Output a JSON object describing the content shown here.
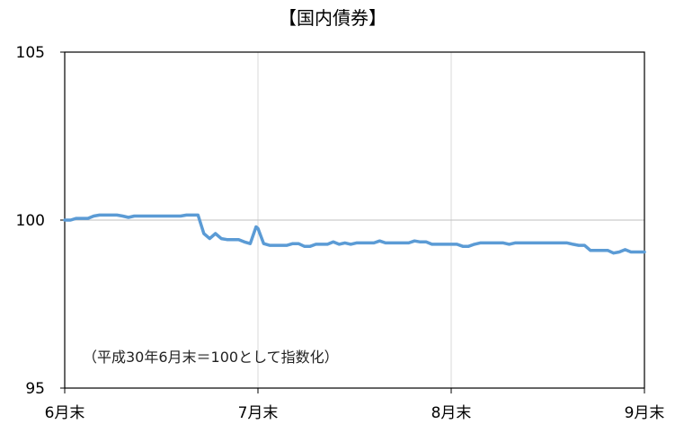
{
  "chart_data": {
    "type": "line",
    "title": "【国内債券】",
    "annotation": "（平成30年6月末＝100として指数化）",
    "xlabel": "",
    "ylabel": "",
    "ylim": [
      95,
      105
    ],
    "y_ticks": [
      "95",
      "100",
      "105"
    ],
    "y_tick_values": [
      95,
      100,
      105
    ],
    "x_ticks": [
      "6月末",
      "7月末",
      "8月末",
      "9月末"
    ],
    "x_tick_values": [
      0,
      1,
      2,
      3
    ],
    "xlim": [
      0,
      3
    ],
    "grid": true,
    "legend": "none",
    "line_color": "#5b9bd5",
    "series": [
      {
        "values_x": [
          0.0,
          0.03,
          0.06,
          0.09,
          0.12,
          0.15,
          0.18,
          0.21,
          0.24,
          0.27,
          0.3,
          0.33,
          0.36,
          0.39,
          0.42,
          0.45,
          0.48,
          0.51,
          0.54,
          0.57,
          0.6,
          0.63,
          0.66,
          0.69,
          0.72,
          0.75,
          0.78,
          0.81,
          0.84,
          0.87,
          0.9,
          0.93,
          0.96,
          0.99,
          1.0,
          1.03,
          1.06,
          1.09,
          1.12,
          1.15,
          1.18,
          1.21,
          1.24,
          1.27,
          1.3,
          1.33,
          1.36,
          1.39,
          1.42,
          1.45,
          1.48,
          1.51,
          1.54,
          1.57,
          1.6,
          1.63,
          1.66,
          1.69,
          1.72,
          1.75,
          1.78,
          1.81,
          1.84,
          1.87,
          1.9,
          1.93,
          1.96,
          1.99,
          2.0,
          2.03,
          2.06,
          2.09,
          2.12,
          2.15,
          2.18,
          2.21,
          2.24,
          2.27,
          2.3,
          2.33,
          2.36,
          2.39,
          2.42,
          2.45,
          2.48,
          2.51,
          2.54,
          2.57,
          2.6,
          2.63,
          2.66,
          2.69,
          2.72,
          2.75,
          2.78,
          2.81,
          2.84,
          2.87,
          2.9,
          2.93,
          2.96,
          3.0
        ],
        "values_y": [
          100.0,
          100.0,
          100.05,
          100.05,
          100.05,
          100.12,
          100.15,
          100.15,
          100.15,
          100.15,
          100.12,
          100.08,
          100.12,
          100.12,
          100.12,
          100.12,
          100.12,
          100.12,
          100.12,
          100.12,
          100.12,
          100.15,
          100.15,
          100.15,
          99.6,
          99.45,
          99.6,
          99.45,
          99.42,
          99.42,
          99.42,
          99.35,
          99.3,
          99.8,
          99.75,
          99.3,
          99.25,
          99.25,
          99.25,
          99.25,
          99.3,
          99.3,
          99.22,
          99.22,
          99.28,
          99.28,
          99.28,
          99.35,
          99.28,
          99.32,
          99.28,
          99.32,
          99.32,
          99.32,
          99.32,
          99.38,
          99.32,
          99.32,
          99.32,
          99.32,
          99.32,
          99.38,
          99.35,
          99.35,
          99.28,
          99.28,
          99.28,
          99.28,
          99.28,
          99.28,
          99.22,
          99.22,
          99.28,
          99.32,
          99.32,
          99.32,
          99.32,
          99.32,
          99.28,
          99.32,
          99.32,
          99.32,
          99.32,
          99.32,
          99.32,
          99.32,
          99.32,
          99.32,
          99.32,
          99.28,
          99.25,
          99.25,
          99.1,
          99.1,
          99.1,
          99.1,
          99.02,
          99.05,
          99.12,
          99.05,
          99.05,
          99.05
        ]
      }
    ]
  }
}
